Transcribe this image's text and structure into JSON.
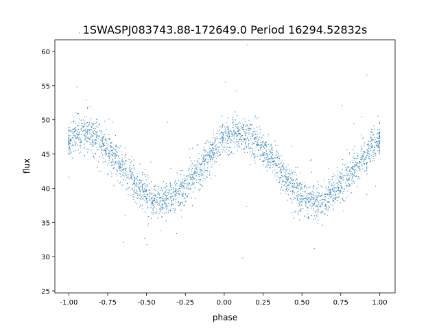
{
  "chart_data": {
    "type": "scatter",
    "title": "1SWASPJ083743.88-172649.0 Period 16294.52832s",
    "xlabel": "phase",
    "ylabel": "flux",
    "xlim": [
      -1.09,
      1.1
    ],
    "ylim": [
      24.7,
      61.7
    ],
    "xticks": [
      "-1.00",
      "-0.75",
      "-0.50",
      "-0.25",
      "0.00",
      "0.25",
      "0.50",
      "0.75",
      "1.00"
    ],
    "yticks": [
      "25",
      "30",
      "35",
      "40",
      "45",
      "50",
      "55",
      "60"
    ],
    "grid": false,
    "color": "#1f77b4",
    "x": [
      -1.0,
      -0.95,
      -0.9,
      -0.85,
      -0.8,
      -0.75,
      -0.7,
      -0.65,
      -0.6,
      -0.55,
      -0.5,
      -0.45,
      -0.4,
      -0.35,
      -0.3,
      -0.25,
      -0.2,
      -0.15,
      -0.1,
      -0.05,
      0.0,
      0.05,
      0.1,
      0.15,
      0.2,
      0.25,
      0.3,
      0.35,
      0.4,
      0.45,
      0.5,
      0.55,
      0.6,
      0.65,
      0.7,
      0.75,
      0.8,
      0.85,
      0.9,
      0.95,
      1.0
    ],
    "y": [
      47.0,
      47.8,
      48.0,
      47.8,
      47.0,
      45.9,
      44.5,
      43.0,
      41.5,
      40.1,
      39.0,
      38.2,
      38.0,
      38.2,
      39.0,
      40.1,
      41.5,
      43.0,
      44.5,
      45.9,
      47.0,
      47.8,
      48.0,
      47.8,
      47.0,
      45.9,
      44.5,
      43.0,
      41.5,
      40.1,
      39.0,
      38.2,
      38.0,
      38.2,
      39.0,
      40.1,
      41.5,
      43.0,
      44.5,
      45.9,
      47.0
    ]
  }
}
